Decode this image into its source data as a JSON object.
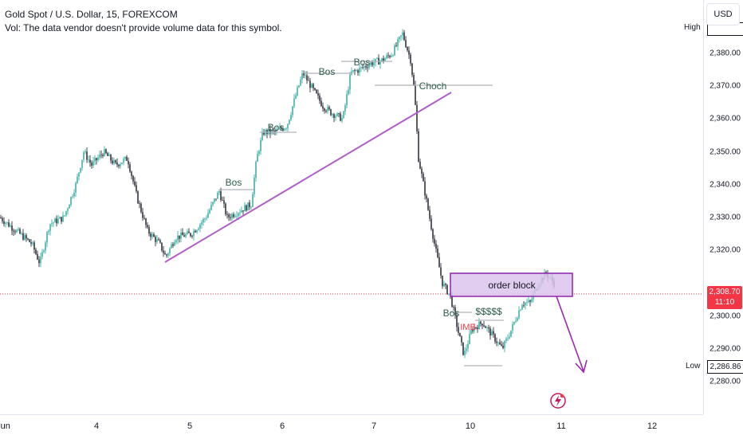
{
  "legend": {
    "title": "Gold Spot / U.S. Dollar, 15, FOREXCOM",
    "volume_note": "Vol: The data vendor doesn't provide volume data for this symbol."
  },
  "currency": "USD",
  "price_axis": {
    "ticks": [
      "2,380.00",
      "2,370.00",
      "2,360.00",
      "2,350.00",
      "2,340.00",
      "2,330.00",
      "2,320.00",
      "2,300.00",
      "2,290.00",
      "2,280.00"
    ],
    "tick_values": [
      2380,
      2370,
      2360,
      2350,
      2340,
      2330,
      2320,
      2300,
      2290,
      2280
    ],
    "high_label": "High",
    "low_label": "Low",
    "low_value": "2,286.86",
    "current_price": "2,308.70",
    "countdown": "11:10"
  },
  "time_axis": {
    "labels": [
      "Jun",
      "4",
      "5",
      "6",
      "7",
      "10",
      "11",
      "12"
    ],
    "positions_day": [
      0,
      1,
      2,
      3,
      4,
      5,
      6,
      7
    ]
  },
  "annotations": {
    "bos": "Bos",
    "choch": "Choch",
    "order_block": "order block",
    "imb": "IMB",
    "liquidity": "$$$$$"
  },
  "colors": {
    "up": "#26a69a",
    "down": "#131722",
    "trendline": "#b05dc8",
    "order_block_fill": "#dcc4ec",
    "order_block_border": "#8e24aa",
    "arrow": "#9c27b0",
    "price_badge": "#f23645",
    "annotation_text": "#2e5c4b",
    "imb_text": "#f23645"
  },
  "chart_data": {
    "type": "line",
    "title": "Gold Spot / U.S. Dollar, 15, FOREXCOM",
    "xlabel": "",
    "ylabel": "",
    "ylim": [
      2275,
      2390
    ],
    "x": [
      "Jun",
      "Jun",
      "4",
      "4",
      "4",
      "5",
      "5",
      "5",
      "6",
      "6",
      "6",
      "7",
      "7",
      "7",
      "7",
      "7",
      "10",
      "10",
      "10",
      "10",
      "11",
      "11"
    ],
    "series": [
      {
        "values": [
          2330,
          2322,
          2338,
          2348,
          2340,
          2318,
          2325,
          2334,
          2356,
          2360,
          2374,
          2366,
          2378,
          2376,
          2386,
          2370,
          2310,
          2287,
          2294,
          2292,
          2312,
          2309
        ]
      }
    ],
    "current_price": 2308.7,
    "low": 2286.86
  }
}
